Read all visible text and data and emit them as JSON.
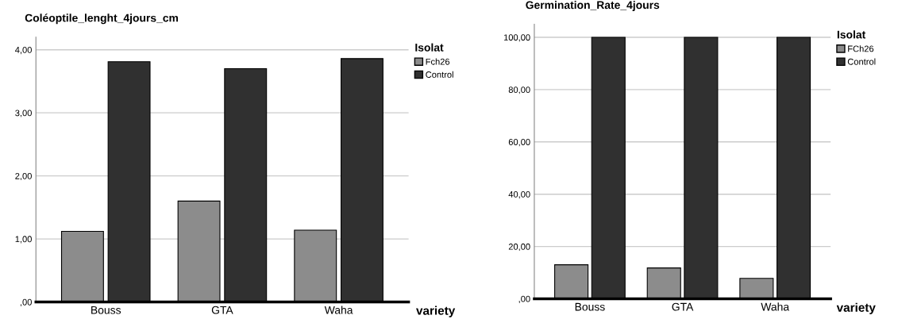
{
  "chart_data": [
    {
      "type": "bar",
      "title": "Coléoptile_lenght_4jours_cm",
      "xlabel": "variety",
      "legend_title": "Isolat",
      "categories": [
        "Bouss",
        "GTA",
        "Waha"
      ],
      "series": [
        {
          "name": "Fch26",
          "color": "#8c8c8c",
          "values": [
            1.12,
            1.6,
            1.14
          ]
        },
        {
          "name": "Control",
          "color": "#303030",
          "values": [
            3.81,
            3.7,
            3.86
          ]
        }
      ],
      "ylim": [
        0,
        4.2
      ],
      "yticks": [
        {
          "value": 0,
          "label": ",00"
        },
        {
          "value": 1,
          "label": "1,00"
        },
        {
          "value": 2,
          "label": "2,00"
        },
        {
          "value": 3,
          "label": "3,00"
        },
        {
          "value": 4,
          "label": "4,00"
        }
      ],
      "grid": "y",
      "legend": "right"
    },
    {
      "type": "bar",
      "title": "Germination_Rate_4jours",
      "xlabel": "variety",
      "legend_title": "Isolat",
      "categories": [
        "Bouss",
        "GTA",
        "Waha"
      ],
      "series": [
        {
          "name": "FCh26",
          "color": "#8c8c8c",
          "values": [
            13.0,
            11.8,
            7.8
          ]
        },
        {
          "name": "Control",
          "color": "#303030",
          "values": [
            100,
            100,
            100
          ]
        }
      ],
      "ylim": [
        0,
        105
      ],
      "yticks": [
        {
          "value": 0,
          "label": ",00"
        },
        {
          "value": 20,
          "label": "20,00"
        },
        {
          "value": 40,
          "label": "40,00"
        },
        {
          "value": 60,
          "label": "60,00"
        },
        {
          "value": 80,
          "label": "80,00"
        },
        {
          "value": 100,
          "label": "100,00"
        }
      ],
      "grid": "y",
      "legend": "right"
    }
  ]
}
